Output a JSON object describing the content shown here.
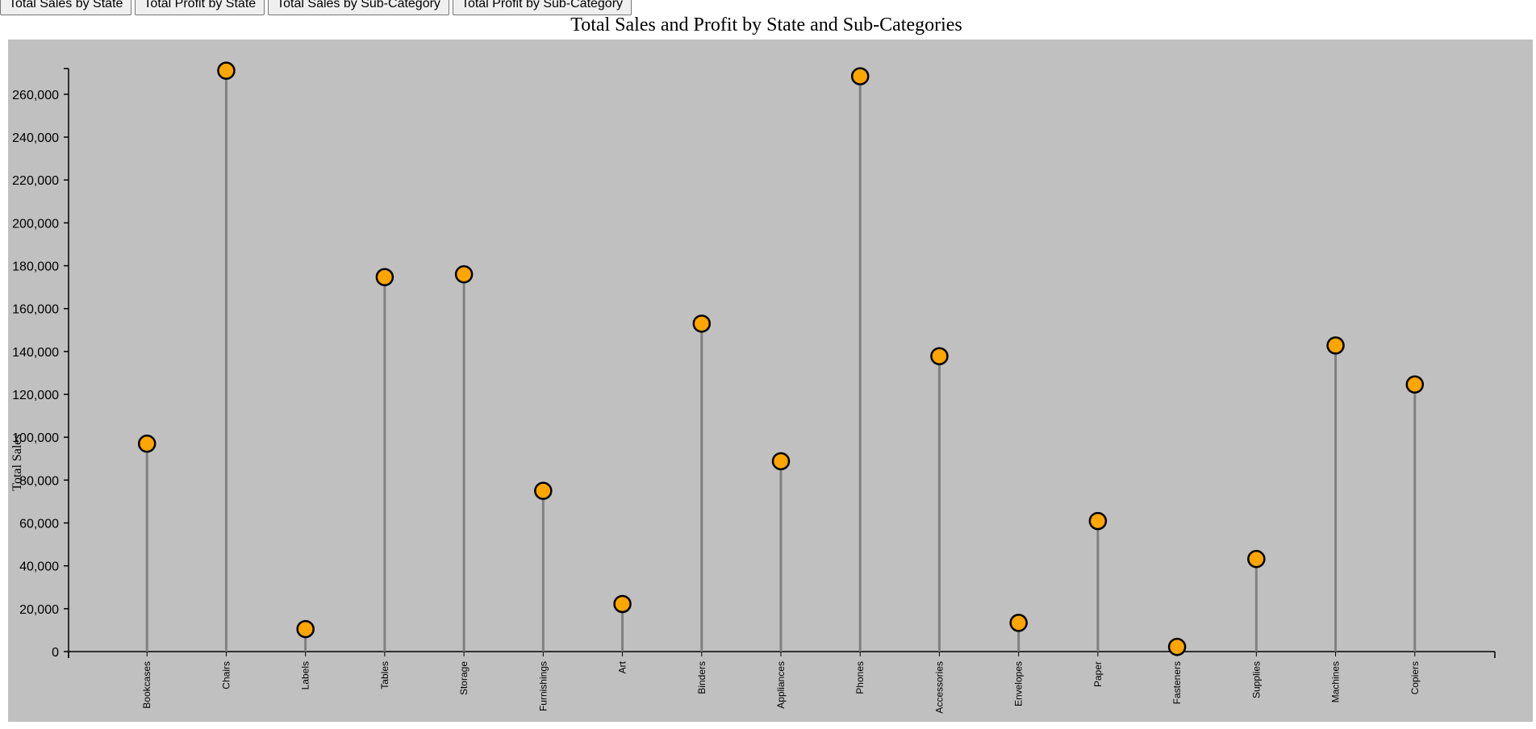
{
  "buttons": {
    "sales_by_state": "Total Sales by State",
    "profit_by_state": "Total Profit by State",
    "sales_by_subcategory": "Total Sales by Sub-Category",
    "profit_by_subcategory": "Total Profit by Sub-Category"
  },
  "colors": {
    "background": "#c0c0c0",
    "stem": "#808080",
    "dot_fill": "#ffa500",
    "dot_stroke": "#000000"
  },
  "chart_data": {
    "type": "lollipop",
    "title": "Total Sales and Profit by State and Sub-Categories",
    "ylabel": "Total Sales",
    "xlabel": "",
    "ylim": [
      0,
      272000
    ],
    "yticks": [
      0,
      20000,
      40000,
      60000,
      80000,
      100000,
      120000,
      140000,
      160000,
      180000,
      200000,
      220000,
      240000,
      260000
    ],
    "ytick_labels": [
      "0",
      "20,000",
      "40,000",
      "60,000",
      "80,000",
      "100,000",
      "120,000",
      "140,000",
      "160,000",
      "180,000",
      "200,000",
      "220,000",
      "240,000",
      "260,000"
    ],
    "categories": [
      "Bookcases",
      "Chairs",
      "Labels",
      "Tables",
      "Storage",
      "Furnishings",
      "Art",
      "Binders",
      "Appliances",
      "Phones",
      "Accessories",
      "Envelopes",
      "Paper",
      "Fasteners",
      "Supplies",
      "Machines",
      "Copiers"
    ],
    "values": [
      97000,
      271000,
      10500,
      174700,
      176000,
      75000,
      22200,
      153000,
      88800,
      268400,
      137800,
      13400,
      60900,
      2200,
      43200,
      142800,
      124600
    ]
  }
}
